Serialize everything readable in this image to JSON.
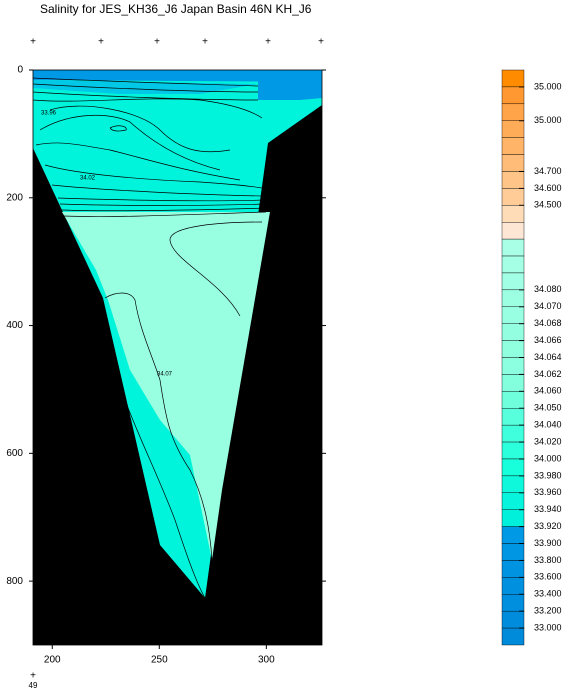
{
  "chart_data": {
    "type": "section",
    "title": "Salinity for JES_KH36_J6 Japan Basin 46N KH_J6",
    "xlim": [
      191,
      326
    ],
    "xticks": [
      200,
      250,
      300
    ],
    "ylim": [
      0,
      900
    ],
    "yticks": [
      0,
      200,
      400,
      600,
      800
    ],
    "y_reversed": true,
    "contour_labels": [
      "33.96",
      "34.02",
      "34.07"
    ],
    "footer": "49",
    "colorbar": {
      "colors": [
        "#ff8c00",
        "#ff9830",
        "#ffa448",
        "#ffac58",
        "#ffb468",
        "#ffbc78",
        "#ffc488",
        "#ffcc98",
        "#ffdcb8",
        "#fde6d4",
        "#a8ffe6",
        "#a4ffe4",
        "#a0ffe4",
        "#9cffe2",
        "#98ffe2",
        "#94ffe0",
        "#90ffe0",
        "#8cffe0",
        "#84ffde",
        "#70ffdc",
        "#58ffdc",
        "#40ffdc",
        "#2cffdc",
        "#18ffdc",
        "#10f8dc",
        "#08f4dc",
        "#00f0dc",
        "#0099e6",
        "#0096e4",
        "#0093e2",
        "#0090e0",
        "#008ede",
        "#008cdc",
        "#008ada"
      ],
      "levels": [
        null,
        {
          "value": 35,
          "label": "35.000"
        },
        null,
        {
          "value": 35,
          "label": "35.000"
        },
        null,
        null,
        {
          "value": 34.7,
          "label": "34.700"
        },
        {
          "value": 34.6,
          "label": "34.600"
        },
        {
          "value": 34.5,
          "label": "34.500"
        },
        null,
        null,
        null,
        null,
        {
          "value": 34.08,
          "label": "34.080"
        },
        {
          "value": 34.07,
          "label": "34.070"
        },
        {
          "value": 34.068,
          "label": "34.068"
        },
        {
          "value": 34.066,
          "label": "34.066"
        },
        {
          "value": 34.064,
          "label": "34.064"
        },
        {
          "value": 34.062,
          "label": "34.062"
        },
        {
          "value": 34.06,
          "label": "34.060"
        },
        {
          "value": 34.05,
          "label": "34.050"
        },
        {
          "value": 34.04,
          "label": "34.040"
        },
        {
          "value": 34.02,
          "label": "34.020"
        },
        {
          "value": 34,
          "label": "34.000"
        },
        {
          "value": 33.98,
          "label": "33.980"
        },
        {
          "value": 33.96,
          "label": "33.960"
        },
        {
          "value": 33.94,
          "label": "33.940"
        },
        {
          "value": 33.92,
          "label": "33.920"
        },
        {
          "value": 33.9,
          "label": "33.900"
        },
        {
          "value": 33.8,
          "label": "33.800"
        },
        {
          "value": 33.6,
          "label": "33.600"
        },
        {
          "value": 33.4,
          "label": "33.400"
        },
        {
          "value": 33.2,
          "label": "33.200"
        },
        {
          "value": 33,
          "label": "33.000"
        },
        null
      ]
    }
  }
}
